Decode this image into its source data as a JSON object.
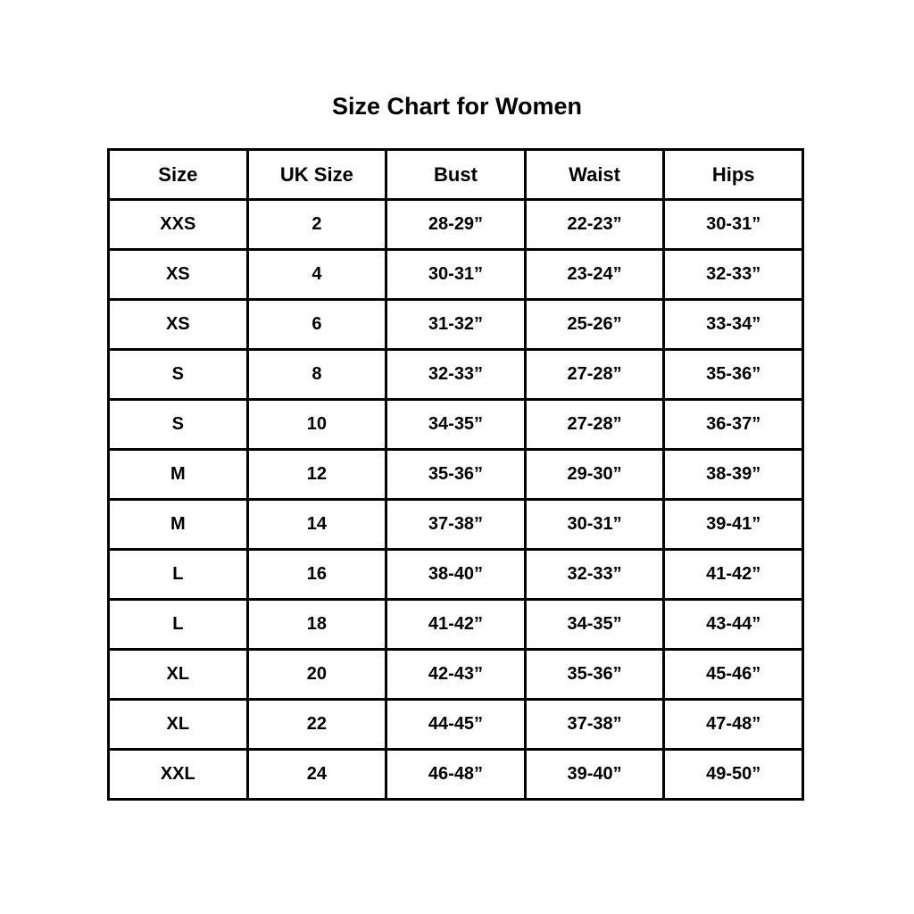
{
  "page": {
    "title": "Size Chart for Women"
  },
  "colors": {
    "background": "#ffffff",
    "text": "#000000",
    "border": "#000000"
  },
  "chart_data": {
    "type": "table",
    "title": "Size Chart for Women",
    "columns": [
      "Size",
      "UK Size",
      "Bust",
      "Waist",
      "Hips"
    ],
    "rows": [
      [
        "XXS",
        "2",
        "28-29”",
        "22-23”",
        "30-31”"
      ],
      [
        "XS",
        "4",
        "30-31”",
        "23-24”",
        "32-33”"
      ],
      [
        "XS",
        "6",
        "31-32”",
        "25-26”",
        "33-34”"
      ],
      [
        "S",
        "8",
        "32-33”",
        "27-28”",
        "35-36”"
      ],
      [
        "S",
        "10",
        "34-35”",
        "27-28”",
        "36-37”"
      ],
      [
        "M",
        "12",
        "35-36”",
        "29-30”",
        "38-39”"
      ],
      [
        "M",
        "14",
        "37-38”",
        "30-31”",
        "39-41”"
      ],
      [
        "L",
        "16",
        "38-40”",
        "32-33”",
        "41-42”"
      ],
      [
        "L",
        "18",
        "41-42”",
        "34-35”",
        "43-44”"
      ],
      [
        "XL",
        "20",
        "42-43”",
        "35-36”",
        "45-46”"
      ],
      [
        "XL",
        "22",
        "44-45”",
        "37-38”",
        "47-48”"
      ],
      [
        "XXL",
        "24",
        "46-48”",
        "39-40”",
        "49-50”"
      ]
    ]
  }
}
